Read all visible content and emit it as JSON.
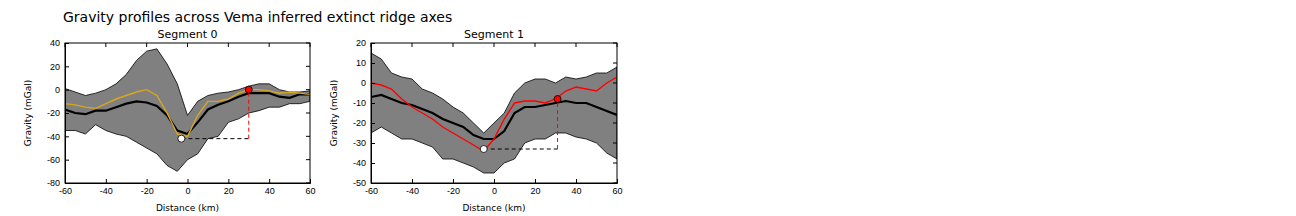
{
  "title": "Gravity profiles across Vema inferred extinct ridge axes",
  "chart_data": [
    {
      "type": "line",
      "title": "Segment 0",
      "x_label": "Distance (km)",
      "y_label": "Gravity (mGal)",
      "xlim": [
        -60,
        60
      ],
      "ylim": [
        -80,
        40
      ],
      "xticks": [
        -60,
        -40,
        -20,
        0,
        20,
        40,
        60
      ],
      "yticks": [
        -80,
        -60,
        -40,
        -20,
        0,
        20,
        40
      ],
      "x": [
        -60,
        -55,
        -50,
        -45,
        -40,
        -35,
        -30,
        -25,
        -20,
        -15,
        -10,
        -5,
        0,
        5,
        10,
        15,
        20,
        25,
        30,
        35,
        40,
        45,
        50,
        55,
        60
      ],
      "band": {
        "color": "#808080",
        "lower": [
          -35,
          -35,
          -38,
          -30,
          -35,
          -38,
          -40,
          -45,
          -50,
          -55,
          -65,
          -70,
          -60,
          -55,
          -42,
          -40,
          -28,
          -25,
          -20,
          -18,
          -15,
          -15,
          -12,
          -12,
          -10
        ],
        "upper": [
          1,
          -2,
          -5,
          -3,
          0,
          5,
          13,
          25,
          33,
          35,
          22,
          5,
          -22,
          -10,
          -5,
          -3,
          -2,
          0,
          3,
          5,
          5,
          0,
          -2,
          -2,
          -1
        ]
      },
      "series": [
        {
          "color": "#000000",
          "values": [
            -17,
            -20,
            -21,
            -18,
            -18,
            -15,
            -12,
            -10,
            -11,
            -14,
            -22,
            -35,
            -38,
            -28,
            -17,
            -13,
            -10,
            -6,
            -3,
            -3,
            -3,
            -6,
            -7,
            -4,
            -4
          ]
        },
        {
          "color": "#daa520",
          "values": [
            -12,
            -13,
            -15,
            -16,
            -12,
            -8,
            -5,
            -2,
            0,
            -5,
            -20,
            -38,
            -40,
            -22,
            -10,
            -10,
            -8,
            -3,
            0,
            0,
            -1,
            -3,
            -2,
            -3,
            -4
          ]
        }
      ],
      "points": [
        {
          "x": 30,
          "y": 0,
          "color": "#ff0000"
        },
        {
          "x": -3,
          "y": -42,
          "color": "#ffffff"
        }
      ]
    },
    {
      "type": "line",
      "title": "Segment 1",
      "x_label": "Distance (km)",
      "y_label": "Gravity (mGal)",
      "xlim": [
        -60,
        60
      ],
      "ylim": [
        -50,
        20
      ],
      "xticks": [
        -60,
        -40,
        -20,
        0,
        20,
        40,
        60
      ],
      "yticks": [
        -50,
        -40,
        -30,
        -20,
        -10,
        0,
        10,
        20
      ],
      "x": [
        -60,
        -55,
        -50,
        -45,
        -40,
        -35,
        -30,
        -25,
        -20,
        -15,
        -10,
        -5,
        0,
        5,
        10,
        15,
        20,
        25,
        30,
        35,
        40,
        45,
        50,
        55,
        60
      ],
      "band": {
        "color": "#808080",
        "lower": [
          -25,
          -22,
          -25,
          -28,
          -28,
          -30,
          -32,
          -38,
          -38,
          -40,
          -42,
          -45,
          -45,
          -40,
          -38,
          -30,
          -28,
          -28,
          -25,
          -25,
          -27,
          -28,
          -30,
          -35,
          -38
        ],
        "upper": [
          15,
          12,
          5,
          3,
          2,
          -3,
          -5,
          -8,
          -12,
          -15,
          -20,
          -25,
          -20,
          -15,
          -5,
          0,
          2,
          2,
          0,
          3,
          2,
          3,
          5,
          5,
          8
        ]
      },
      "series": [
        {
          "color": "#000000",
          "values": [
            -7,
            -6,
            -8,
            -10,
            -11,
            -13,
            -15,
            -18,
            -20,
            -22,
            -26,
            -28,
            -28,
            -24,
            -15,
            -12,
            -12,
            -11,
            -10,
            -9,
            -10,
            -10,
            -12,
            -14,
            -16
          ]
        },
        {
          "color": "#ff0000",
          "values": [
            0,
            -1,
            -3,
            -8,
            -12,
            -15,
            -18,
            -22,
            -25,
            -28,
            -31,
            -34,
            -28,
            -18,
            -10,
            -9,
            -9,
            -10,
            -8,
            -4,
            -2,
            -3,
            -4,
            0,
            3
          ]
        }
      ],
      "points": [
        {
          "x": 31,
          "y": -8,
          "color": "#ff0000"
        },
        {
          "x": -5,
          "y": -33,
          "color": "#ffffff"
        }
      ]
    }
  ]
}
